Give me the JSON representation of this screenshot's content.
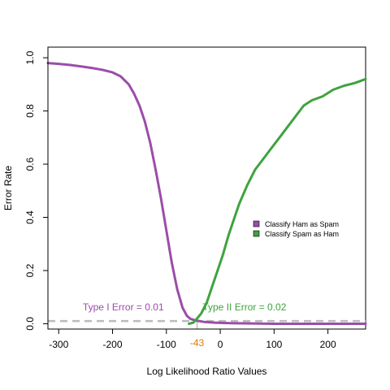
{
  "chart_data": {
    "type": "line",
    "title": "",
    "xlabel": "Log Likelihood Ratio Values",
    "ylabel": "Error Rate",
    "xlim": [
      -320,
      270
    ],
    "ylim": [
      -0.02,
      1.04
    ],
    "x_ticks": [
      -300,
      -200,
      -100,
      0,
      100,
      200
    ],
    "y_ticks": [
      0.0,
      0.2,
      0.4,
      0.6,
      0.8,
      1.0
    ],
    "x_tick_labels": [
      "-300",
      "-200",
      "-100",
      "0",
      "100",
      "200"
    ],
    "y_tick_labels": [
      "0.0",
      "0.2",
      "0.4",
      "0.6",
      "0.8",
      "1.0"
    ],
    "grid": false,
    "legend_position": "right",
    "series": [
      {
        "name": "Classify Ham as Spam",
        "color": "#9B4DAA",
        "points": [
          [
            -320,
            0.98
          ],
          [
            -300,
            0.977
          ],
          [
            -280,
            0.973
          ],
          [
            -260,
            0.968
          ],
          [
            -240,
            0.962
          ],
          [
            -220,
            0.955
          ],
          [
            -200,
            0.945
          ],
          [
            -185,
            0.93
          ],
          [
            -170,
            0.9
          ],
          [
            -160,
            0.865
          ],
          [
            -150,
            0.82
          ],
          [
            -140,
            0.76
          ],
          [
            -130,
            0.68
          ],
          [
            -120,
            0.58
          ],
          [
            -110,
            0.47
          ],
          [
            -100,
            0.35
          ],
          [
            -90,
            0.23
          ],
          [
            -80,
            0.13
          ],
          [
            -70,
            0.06
          ],
          [
            -62,
            0.03
          ],
          [
            -55,
            0.018
          ],
          [
            -45,
            0.012
          ],
          [
            -30,
            0.007
          ],
          [
            -10,
            0.004
          ],
          [
            20,
            0.002
          ],
          [
            60,
            0.001
          ],
          [
            100,
            0.0
          ],
          [
            150,
            0.0
          ],
          [
            200,
            0.0
          ],
          [
            270,
            0.0
          ]
        ]
      },
      {
        "name": "Classify Spam as Ham",
        "color": "#3FA33F",
        "points": [
          [
            -58,
            0.0
          ],
          [
            -50,
            0.004
          ],
          [
            -43,
            0.02
          ],
          [
            -35,
            0.04
          ],
          [
            -25,
            0.08
          ],
          [
            -15,
            0.14
          ],
          [
            -5,
            0.2
          ],
          [
            5,
            0.26
          ],
          [
            15,
            0.33
          ],
          [
            25,
            0.39
          ],
          [
            35,
            0.45
          ],
          [
            50,
            0.52
          ],
          [
            65,
            0.58
          ],
          [
            80,
            0.62
          ],
          [
            95,
            0.66
          ],
          [
            110,
            0.7
          ],
          [
            125,
            0.74
          ],
          [
            140,
            0.78
          ],
          [
            155,
            0.82
          ],
          [
            170,
            0.84
          ],
          [
            190,
            0.855
          ],
          [
            210,
            0.88
          ],
          [
            230,
            0.895
          ],
          [
            250,
            0.905
          ],
          [
            270,
            0.92
          ]
        ]
      }
    ],
    "reference_line": {
      "y": 0.01,
      "color": "#BBBBBB"
    },
    "marker": {
      "x": -43,
      "label": "-43",
      "color": "#E07B00"
    },
    "annotations": [
      {
        "text": "Type I Error = 0.01",
        "color": "#9B4DAA",
        "x": -180,
        "y": 0.05
      },
      {
        "text": "Type II Error =  0.02",
        "color": "#3FA33F",
        "x": 45,
        "y": 0.05
      }
    ]
  }
}
